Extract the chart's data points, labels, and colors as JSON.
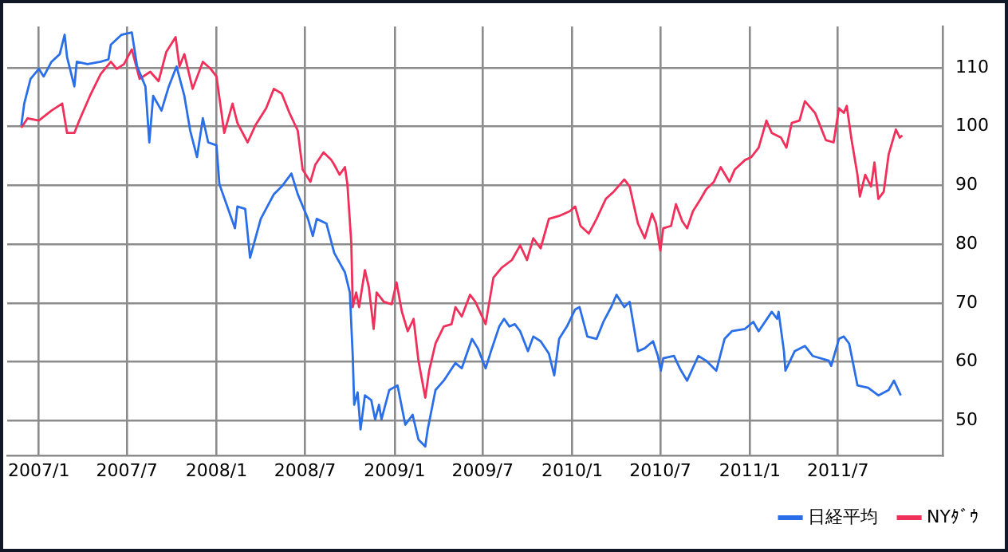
{
  "chart_data": {
    "type": "line",
    "xlim": [
      "2006-10-28",
      "2012-02-01"
    ],
    "ylim": [
      44,
      117
    ],
    "xticks": [
      {
        "value": "2007-01",
        "label": "2007/1"
      },
      {
        "value": "2007-07",
        "label": "2007/7"
      },
      {
        "value": "2008-01",
        "label": "2008/1"
      },
      {
        "value": "2008-07",
        "label": "2008/7"
      },
      {
        "value": "2009-01",
        "label": "2009/1"
      },
      {
        "value": "2009-07",
        "label": "2009/7"
      },
      {
        "value": "2010-01",
        "label": "2010/1"
      },
      {
        "value": "2010-07",
        "label": "2010/7"
      },
      {
        "value": "2011-01",
        "label": "2011/1"
      },
      {
        "value": "2011-07",
        "label": "2011/7"
      }
    ],
    "yticks": [
      50,
      60,
      70,
      80,
      90,
      100,
      110
    ],
    "grid": true,
    "legend": "bottom right",
    "marker": "none",
    "line_style": "solid",
    "series": [
      {
        "name": "日経平均",
        "color": "#2a6ee8",
        "x": [
          "2006-11-26",
          "2006-12-02",
          "2006-12-15",
          "2007-01-01",
          "2007-01-11",
          "2007-01-27",
          "2007-02-13",
          "2007-02-23",
          "2007-02-28",
          "2007-03-15",
          "2007-03-20",
          "2007-04-11",
          "2007-05-08",
          "2007-05-24",
          "2007-05-29",
          "2007-06-20",
          "2007-07-11",
          "2007-07-22",
          "2007-08-08",
          "2007-08-16",
          "2007-08-24",
          "2007-09-10",
          "2007-09-25",
          "2007-10-11",
          "2007-10-27",
          "2007-11-08",
          "2007-11-22",
          "2007-12-04",
          "2007-12-15",
          "2008-01-01",
          "2008-01-07",
          "2008-02-08",
          "2008-02-13",
          "2008-02-29",
          "2008-03-10",
          "2008-04-01",
          "2008-04-28",
          "2008-05-14",
          "2008-06-03",
          "2008-06-16",
          "2008-07-07",
          "2008-07-17",
          "2008-07-25",
          "2008-08-14",
          "2008-08-30",
          "2008-09-21",
          "2008-10-01",
          "2008-10-07",
          "2008-10-10",
          "2008-10-17",
          "2008-10-23",
          "2008-11-01",
          "2008-11-14",
          "2008-11-22",
          "2008-11-30",
          "2008-12-05",
          "2008-12-21",
          "2009-01-07",
          "2009-01-23",
          "2009-02-07",
          "2009-02-19",
          "2009-03-05",
          "2009-03-10",
          "2009-03-26",
          "2009-04-12",
          "2009-05-06",
          "2009-05-19",
          "2009-06-09",
          "2009-06-21",
          "2009-07-07",
          "2009-07-18",
          "2009-08-04",
          "2009-08-14",
          "2009-08-25",
          "2009-09-05",
          "2009-09-16",
          "2009-10-02",
          "2009-10-13",
          "2009-10-28",
          "2009-11-14",
          "2009-11-25",
          "2009-12-05",
          "2009-12-21",
          "2010-01-07",
          "2010-01-16",
          "2010-02-01",
          "2010-02-20",
          "2010-03-06",
          "2010-03-22",
          "2010-04-02",
          "2010-04-18",
          "2010-04-29",
          "2010-05-16",
          "2010-05-30",
          "2010-06-16",
          "2010-06-26",
          "2010-07-02",
          "2010-07-07",
          "2010-07-29",
          "2010-08-10",
          "2010-08-25",
          "2010-09-17",
          "2010-10-03",
          "2010-10-24",
          "2010-11-10",
          "2010-11-25",
          "2010-12-22",
          "2011-01-08",
          "2011-01-19",
          "2011-02-15",
          "2011-02-26",
          "2011-03-01",
          "2011-03-12",
          "2011-03-15",
          "2011-04-03",
          "2011-04-24",
          "2011-05-10",
          "2011-06-12",
          "2011-06-17",
          "2011-07-03",
          "2011-07-13",
          "2011-07-24",
          "2011-08-10",
          "2011-09-01",
          "2011-09-22",
          "2011-10-13",
          "2011-10-24",
          "2011-11-07"
        ],
        "values": [
          100.2,
          103.9,
          108.1,
          109.8,
          108.5,
          111,
          112.3,
          115.6,
          111.8,
          106.8,
          111,
          110.6,
          111,
          111.4,
          113.9,
          115.6,
          116,
          110.2,
          106.8,
          97.3,
          105.2,
          102.7,
          106.8,
          110.2,
          105.2,
          99.3,
          94.8,
          101.4,
          97.3,
          96.8,
          90.2,
          82.7,
          86.4,
          86,
          77.7,
          84.3,
          88.5,
          89.8,
          92,
          88.5,
          84.3,
          81.4,
          84.3,
          83.5,
          78.5,
          75.2,
          71.8,
          61,
          52.7,
          54.8,
          48.5,
          54.3,
          53.5,
          50.2,
          52.7,
          50.2,
          55.2,
          56,
          49.3,
          51,
          46.8,
          45.6,
          48.5,
          55.2,
          56.8,
          59.8,
          58.9,
          63.9,
          62.3,
          58.9,
          61.8,
          66,
          67.3,
          66,
          66.4,
          65.2,
          61.8,
          64.3,
          63.5,
          61.4,
          57.7,
          63.9,
          66,
          68.9,
          69.3,
          64.3,
          63.9,
          66.8,
          69.3,
          71.4,
          69.3,
          70.2,
          61.8,
          62.3,
          63.5,
          61,
          58.5,
          60.6,
          61,
          58.9,
          56.8,
          61,
          60.2,
          58.5,
          63.9,
          65.2,
          65.6,
          66.8,
          65.2,
          68.5,
          67.3,
          68.5,
          61.8,
          58.5,
          61.8,
          62.7,
          61,
          60.2,
          59.3,
          63.9,
          64.3,
          63.1,
          56,
          55.6,
          54.3,
          55.2,
          56.8,
          54.3
        ]
      },
      {
        "name": "NYﾀﾞｳ",
        "color": "#f0305a",
        "x": [
          "2006-11-26",
          "2006-12-09",
          "2007-01-01",
          "2007-01-27",
          "2007-02-18",
          "2007-02-28",
          "2007-03-15",
          "2007-03-25",
          "2007-04-16",
          "2007-05-08",
          "2007-05-29",
          "2007-06-10",
          "2007-06-25",
          "2007-07-11",
          "2007-07-27",
          "2007-08-18",
          "2007-09-04",
          "2007-09-20",
          "2007-10-09",
          "2007-10-17",
          "2007-10-27",
          "2007-11-13",
          "2007-12-04",
          "2007-12-20",
          "2008-01-01",
          "2008-01-17",
          "2008-02-03",
          "2008-02-13",
          "2008-03-05",
          "2008-03-21",
          "2008-04-12",
          "2008-04-28",
          "2008-05-14",
          "2008-05-30",
          "2008-06-16",
          "2008-06-26",
          "2008-07-12",
          "2008-07-22",
          "2008-08-08",
          "2008-08-24",
          "2008-08-30",
          "2008-09-10",
          "2008-09-21",
          "2008-09-26",
          "2008-10-04",
          "2008-10-07",
          "2008-10-14",
          "2008-10-20",
          "2008-11-01",
          "2008-11-09",
          "2008-11-19",
          "2008-11-25",
          "2008-12-10",
          "2008-12-26",
          "2009-01-05",
          "2009-01-16",
          "2009-01-28",
          "2009-02-09",
          "2009-02-19",
          "2009-03-05",
          "2009-03-13",
          "2009-03-26",
          "2009-04-12",
          "2009-04-28",
          "2009-05-06",
          "2009-05-19",
          "2009-06-05",
          "2009-06-16",
          "2009-07-07",
          "2009-07-23",
          "2009-08-09",
          "2009-08-30",
          "2009-09-16",
          "2009-09-30",
          "2009-10-13",
          "2009-10-28",
          "2009-11-14",
          "2009-12-05",
          "2009-12-16",
          "2009-12-27",
          "2010-01-07",
          "2010-01-18",
          "2010-02-04",
          "2010-02-20",
          "2010-03-11",
          "2010-03-27",
          "2010-04-18",
          "2010-04-29",
          "2010-05-16",
          "2010-05-30",
          "2010-06-14",
          "2010-06-22",
          "2010-07-01",
          "2010-07-07",
          "2010-07-23",
          "2010-08-02",
          "2010-08-15",
          "2010-08-25",
          "2010-09-06",
          "2010-09-22",
          "2010-10-03",
          "2010-10-19",
          "2010-11-02",
          "2010-11-20",
          "2010-12-01",
          "2010-12-22",
          "2011-01-04",
          "2011-01-19",
          "2011-02-04",
          "2011-02-15",
          "2011-03-06",
          "2011-03-17",
          "2011-03-28",
          "2011-04-13",
          "2011-04-24",
          "2011-05-15",
          "2011-06-06",
          "2011-06-22",
          "2011-07-03",
          "2011-07-13",
          "2011-07-19",
          "2011-07-29",
          "2011-08-10",
          "2011-08-15",
          "2011-08-26",
          "2011-09-07",
          "2011-09-14",
          "2011-09-22",
          "2011-10-03",
          "2011-10-13",
          "2011-10-28",
          "2011-11-05",
          "2011-11-10"
        ],
        "values": [
          99.8,
          101.4,
          101,
          102.7,
          103.9,
          98.9,
          98.9,
          101,
          105.2,
          108.9,
          111,
          109.8,
          110.6,
          113.1,
          108.1,
          109.3,
          107.7,
          112.7,
          115.2,
          110.2,
          112.3,
          106.4,
          111,
          109.8,
          108.5,
          98.9,
          103.9,
          100.6,
          97.3,
          100.2,
          103.1,
          106.4,
          105.6,
          102.3,
          99.3,
          92.7,
          90.6,
          93.5,
          95.6,
          94.3,
          93.5,
          91.8,
          93.1,
          90.2,
          80.2,
          69.3,
          71.8,
          69.3,
          75.6,
          72.7,
          65.6,
          71.8,
          70.2,
          69.8,
          73.5,
          68.5,
          65.2,
          67.3,
          60.2,
          53.9,
          58.5,
          63.1,
          66,
          66.4,
          69.3,
          67.7,
          71.4,
          70.2,
          66.4,
          74.3,
          76,
          77.3,
          79.8,
          77.3,
          81,
          79.3,
          84.3,
          84.8,
          85.2,
          85.6,
          86.4,
          83.1,
          81.8,
          84.3,
          87.7,
          88.9,
          91,
          89.8,
          83.5,
          81,
          85.2,
          83.5,
          78.9,
          82.7,
          83.1,
          86.8,
          83.9,
          82.7,
          85.6,
          87.7,
          89.3,
          90.6,
          93.1,
          90.6,
          92.7,
          94.3,
          94.8,
          96.4,
          101,
          98.9,
          98.1,
          96.4,
          100.6,
          101,
          104.3,
          102.3,
          97.7,
          97.3,
          103.1,
          102.3,
          103.5,
          97.7,
          91.8,
          88.1,
          91.8,
          89.8,
          93.9,
          87.7,
          88.9,
          95.2,
          99.5,
          98.1,
          98.5
        ]
      }
    ]
  }
}
